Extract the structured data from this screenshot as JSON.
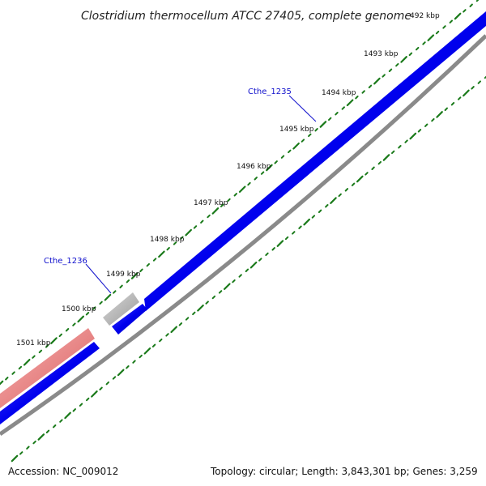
{
  "title": "Clostridium thermocellum ATCC 27405, complete genome",
  "accession": "Accession: NC_009012",
  "summary": "Topology: circular; Length: 3,843,301 bp; Genes: 3,259",
  "ticks": [
    {
      "label": "492 kbp"
    },
    {
      "label": "1493 kbp"
    },
    {
      "label": "1494 kbp"
    },
    {
      "label": "1495 kbp"
    },
    {
      "label": "1496 kbp"
    },
    {
      "label": "1497 kbp"
    },
    {
      "label": "1498 kbp"
    },
    {
      "label": "1499 kbp"
    },
    {
      "label": "1500 kbp"
    },
    {
      "label": "1501 kbp"
    }
  ],
  "genes": [
    {
      "label": "Cthe_1235"
    },
    {
      "label": "Cthe_1236"
    }
  ],
  "colors": {
    "forward_cds": "#0000ee",
    "reverse_cds": "#0000ee",
    "pseudo_gene": "#aaaaaa",
    "rna_feature": "#f08080",
    "backbone": "#777777",
    "gc_dots": "#1a7a1a",
    "gene_label": "#1010cc"
  }
}
